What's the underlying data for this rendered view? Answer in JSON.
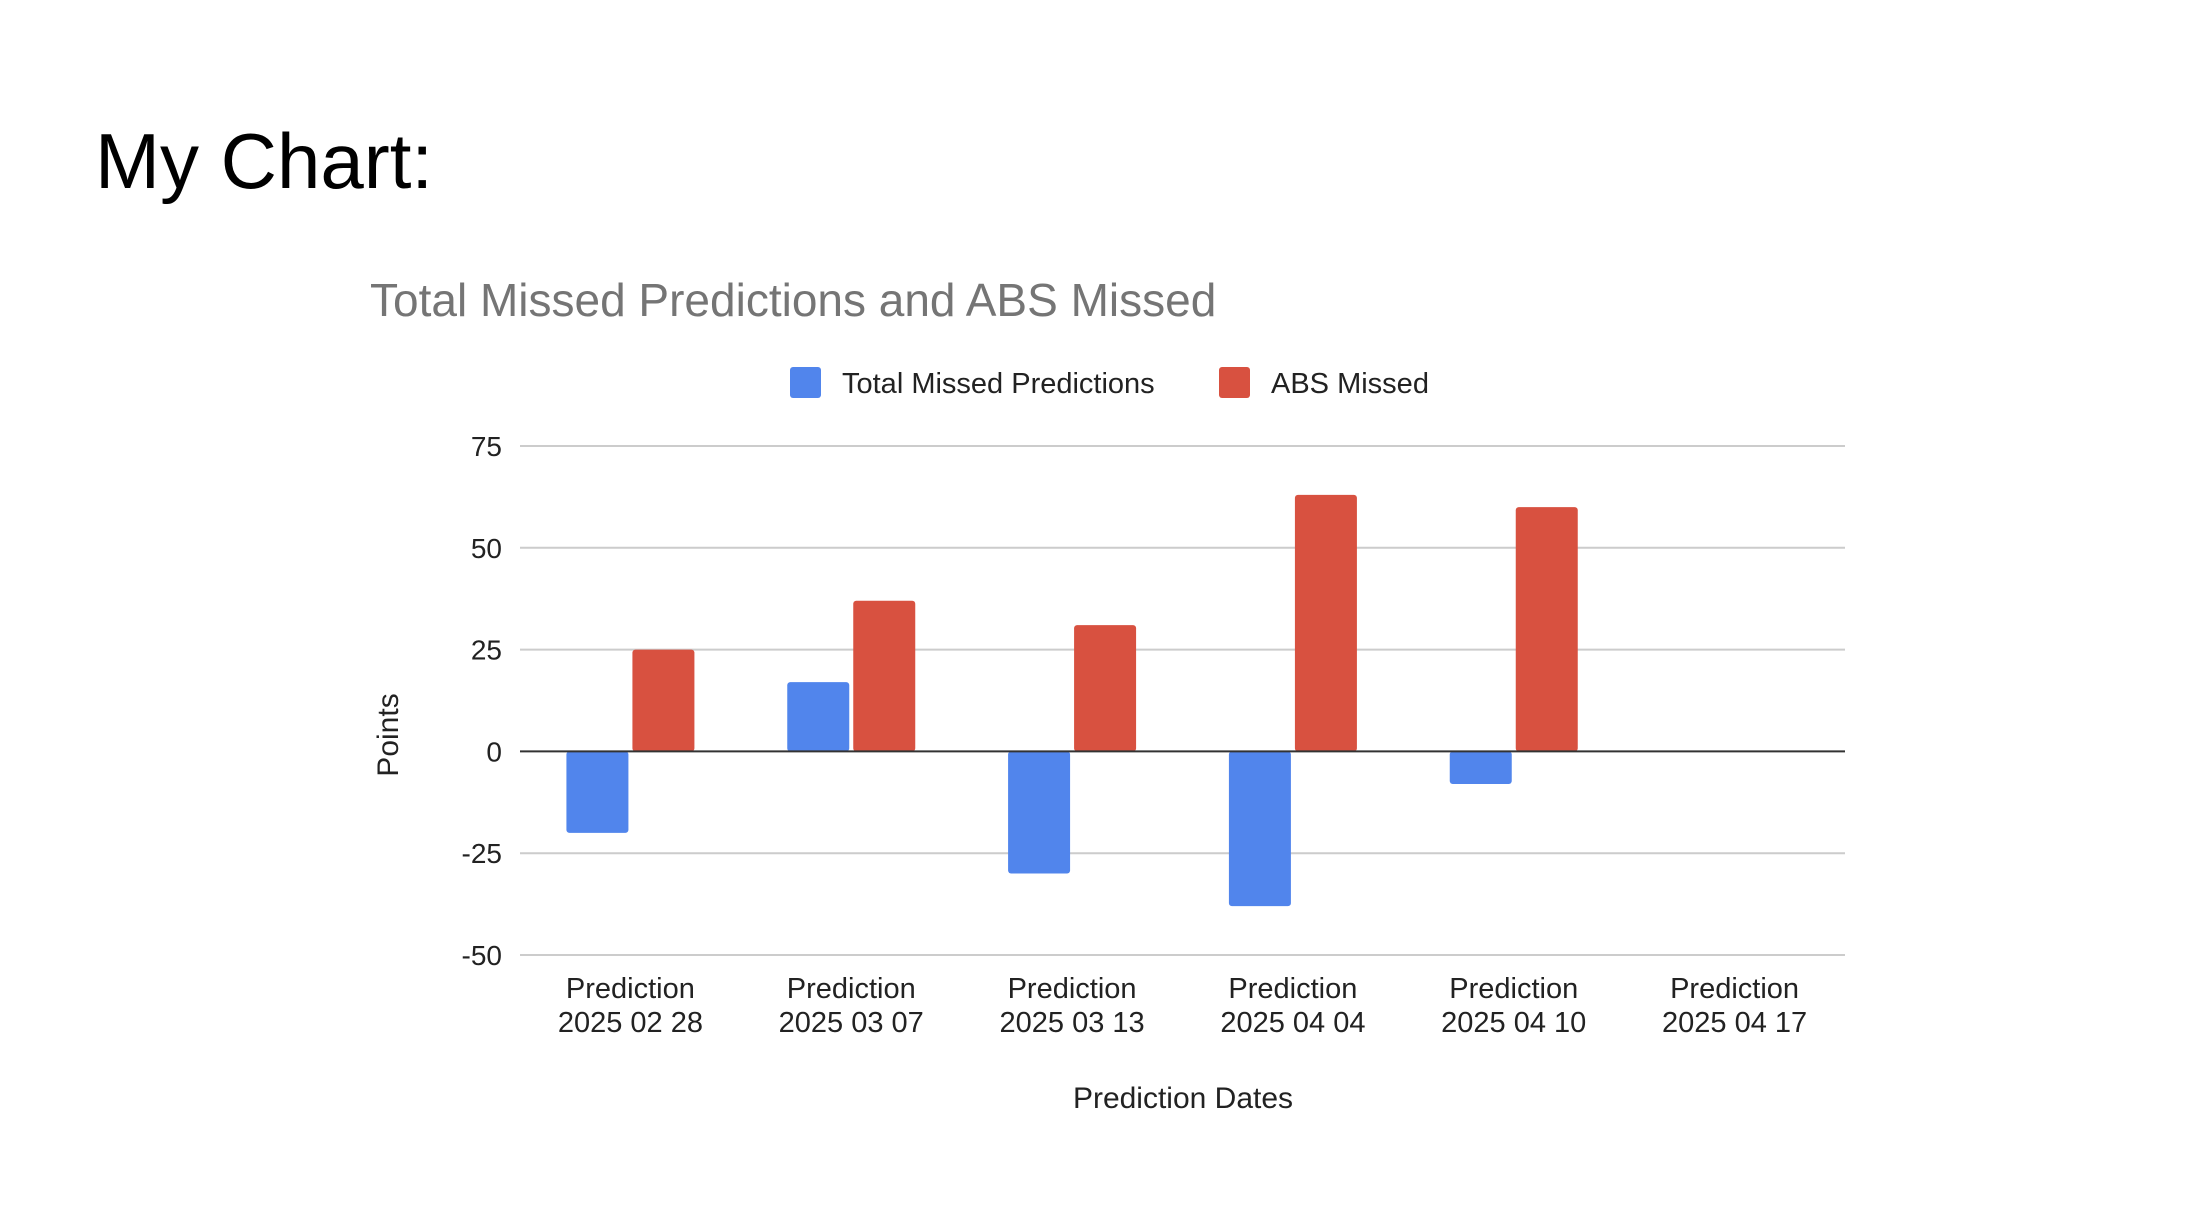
{
  "slide": {
    "heading": "My Chart:"
  },
  "chart_data": {
    "type": "bar",
    "title": "Total Missed Predictions and ABS Missed",
    "xlabel": "Prediction Dates",
    "ylabel": "Points",
    "ylim": [
      -50,
      75
    ],
    "yticks": [
      75,
      50,
      25,
      0,
      -25,
      -50
    ],
    "grid": true,
    "legend_position": "top",
    "categories": [
      [
        "Prediction",
        "2025 02 28"
      ],
      [
        "Prediction",
        "2025 03 07"
      ],
      [
        "Prediction",
        "2025 03 13"
      ],
      [
        "Prediction",
        "2025 04 04"
      ],
      [
        "Prediction",
        "2025 04 10"
      ],
      [
        "Prediction",
        "2025 04 17"
      ]
    ],
    "series": [
      {
        "name": "Total Missed Predictions",
        "color": "#5185ec",
        "values": [
          -20,
          17,
          -30,
          -38,
          -8,
          0
        ]
      },
      {
        "name": "ABS Missed",
        "color": "#d85140",
        "values": [
          25,
          37,
          31,
          63,
          60,
          0
        ]
      }
    ],
    "colors": {
      "title": "#757575",
      "text": "#222222",
      "grid": "#cccccc",
      "zero_line": "#333333"
    }
  }
}
